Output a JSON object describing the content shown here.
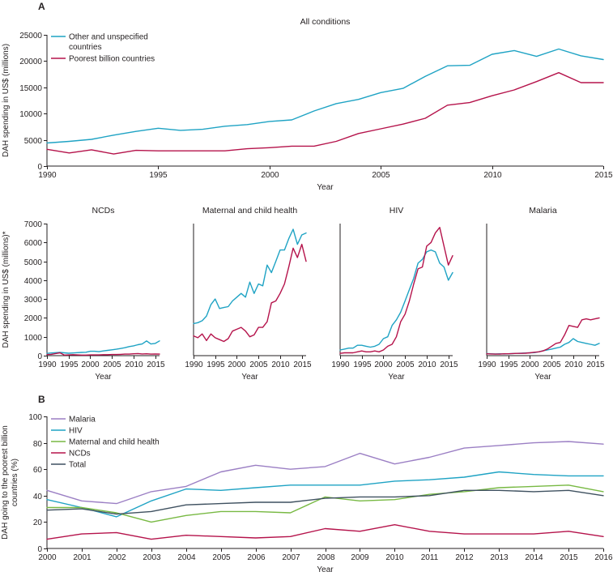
{
  "colors": {
    "other": "#1fa3c4",
    "poorest": "#b5134b",
    "malaria": "#9b7fc4",
    "hiv": "#1fa3c4",
    "mch": "#78b943",
    "ncds": "#b5134b",
    "total": "#3f5160",
    "axis": "#231f20"
  },
  "chart_data": [
    {
      "id": "A",
      "panel_letter": "A",
      "type": "line",
      "title": "All conditions",
      "xlabel": "Year",
      "ylabel": "DAH spending in US$ (millions)",
      "xlim": [
        1990,
        2015
      ],
      "ylim": [
        0,
        25000
      ],
      "xticks": [
        1990,
        1995,
        2000,
        2005,
        2010,
        2015
      ],
      "yticks": [
        0,
        5000,
        10000,
        15000,
        20000,
        25000
      ],
      "legend_position": "top-left",
      "x": [
        1990,
        1991,
        1992,
        1993,
        1994,
        1995,
        1996,
        1997,
        1998,
        1999,
        2000,
        2001,
        2002,
        2003,
        2004,
        2005,
        2006,
        2007,
        2008,
        2009,
        2010,
        2011,
        2012,
        2013,
        2014,
        2015
      ],
      "series": [
        {
          "name": "Other and unspecified countries",
          "color_key": "other",
          "values": [
            4400,
            4700,
            5100,
            5900,
            6600,
            7200,
            6800,
            7000,
            7600,
            7900,
            8500,
            8800,
            10500,
            11900,
            12700,
            14000,
            14800,
            17100,
            19100,
            19200,
            21300,
            22000,
            20900,
            22300,
            21000,
            20300
          ]
        },
        {
          "name": "Poorest billion countries",
          "color_key": "poorest",
          "values": [
            3200,
            2500,
            3100,
            2300,
            3000,
            2900,
            2900,
            2900,
            2900,
            3300,
            3500,
            3800,
            3800,
            4700,
            6200,
            7100,
            8000,
            9100,
            11600,
            12100,
            13400,
            14500,
            16100,
            17800,
            15900,
            15900
          ]
        }
      ]
    },
    {
      "id": "NCDs",
      "type": "line",
      "title": "NCDs",
      "xlabel": "Year",
      "ylabel": "DAH spending in US$ (millions)*",
      "xlim": [
        1990,
        2016
      ],
      "ylim": [
        0,
        7000
      ],
      "xticks": [
        1990,
        1995,
        2000,
        2005,
        2010,
        2015
      ],
      "yticks": [
        0,
        1000,
        2000,
        3000,
        4000,
        5000,
        6000,
        7000
      ],
      "x": [
        1990,
        1991,
        1992,
        1993,
        1994,
        1995,
        1996,
        1997,
        1998,
        1999,
        2000,
        2001,
        2002,
        2003,
        2004,
        2005,
        2006,
        2007,
        2008,
        2009,
        2010,
        2011,
        2012,
        2013,
        2014,
        2015,
        2016
      ],
      "series": [
        {
          "name": "Other and unspecified countries",
          "color_key": "other",
          "values": [
            120,
            140,
            160,
            170,
            150,
            130,
            140,
            160,
            170,
            180,
            230,
            230,
            210,
            250,
            280,
            310,
            340,
            380,
            420,
            480,
            520,
            580,
            620,
            780,
            620,
            650,
            780
          ]
        },
        {
          "name": "Poorest billion countries",
          "color_key": "poorest",
          "values": [
            60,
            70,
            110,
            150,
            30,
            40,
            50,
            40,
            30,
            30,
            40,
            40,
            40,
            50,
            50,
            60,
            60,
            70,
            80,
            80,
            100,
            110,
            90,
            100,
            80,
            90,
            80
          ]
        }
      ]
    },
    {
      "id": "MCH",
      "type": "line",
      "title": "Maternal and child health",
      "xlabel": "Year",
      "ylabel": "",
      "xlim": [
        1990,
        2016
      ],
      "ylim": [
        0,
        7000
      ],
      "xticks": [
        1990,
        1995,
        2000,
        2005,
        2010,
        2015
      ],
      "x": [
        1990,
        1991,
        1992,
        1993,
        1994,
        1995,
        1996,
        1997,
        1998,
        1999,
        2000,
        2001,
        2002,
        2003,
        2004,
        2005,
        2006,
        2007,
        2008,
        2009,
        2010,
        2011,
        2012,
        2013,
        2014,
        2015,
        2016
      ],
      "series": [
        {
          "name": "Other and unspecified countries",
          "color_key": "other",
          "values": [
            1700,
            1750,
            1850,
            2100,
            2700,
            3000,
            2500,
            2550,
            2600,
            2900,
            3100,
            3300,
            3100,
            3900,
            3300,
            3800,
            3700,
            4800,
            4400,
            5000,
            5600,
            5600,
            6200,
            6700,
            5900,
            6400,
            6500
          ]
        },
        {
          "name": "Poorest billion countries",
          "color_key": "poorest",
          "values": [
            1050,
            950,
            1150,
            800,
            1150,
            950,
            850,
            750,
            900,
            1300,
            1400,
            1500,
            1300,
            1000,
            1100,
            1500,
            1500,
            1800,
            2800,
            2900,
            3300,
            3800,
            4700,
            5700,
            5200,
            5900,
            5000
          ]
        }
      ]
    },
    {
      "id": "HIV",
      "type": "line",
      "title": "HIV",
      "xlabel": "Year",
      "ylabel": "",
      "xlim": [
        1990,
        2016
      ],
      "ylim": [
        0,
        7000
      ],
      "xticks": [
        1990,
        1995,
        2000,
        2005,
        2010,
        2015
      ],
      "x": [
        1990,
        1991,
        1992,
        1993,
        1994,
        1995,
        1996,
        1997,
        1998,
        1999,
        2000,
        2001,
        2002,
        2003,
        2004,
        2005,
        2006,
        2007,
        2008,
        2009,
        2010,
        2011,
        2012,
        2013,
        2014,
        2015,
        2016
      ],
      "series": [
        {
          "name": "Other and unspecified countries",
          "color_key": "other",
          "values": [
            300,
            350,
            400,
            400,
            550,
            550,
            500,
            450,
            500,
            600,
            900,
            1000,
            1600,
            1900,
            2300,
            2900,
            3500,
            4100,
            4900,
            5100,
            5500,
            5600,
            5500,
            4900,
            4700,
            4000,
            4400
          ]
        },
        {
          "name": "Poorest billion countries",
          "color_key": "poorest",
          "values": [
            120,
            150,
            150,
            150,
            200,
            250,
            200,
            200,
            250,
            200,
            300,
            500,
            600,
            1000,
            1800,
            2200,
            2900,
            3800,
            4600,
            4700,
            5800,
            6000,
            6500,
            6800,
            5800,
            4800,
            5300
          ]
        }
      ]
    },
    {
      "id": "Malaria",
      "type": "line",
      "title": "Malaria",
      "xlabel": "Year",
      "ylabel": "",
      "xlim": [
        1990,
        2016
      ],
      "ylim": [
        0,
        7000
      ],
      "xticks": [
        1990,
        1995,
        2000,
        2005,
        2010,
        2015
      ],
      "x": [
        1990,
        1991,
        1992,
        1993,
        1994,
        1995,
        1996,
        1997,
        1998,
        1999,
        2000,
        2001,
        2002,
        2003,
        2004,
        2005,
        2006,
        2007,
        2008,
        2009,
        2010,
        2011,
        2012,
        2013,
        2014,
        2015,
        2016
      ],
      "series": [
        {
          "name": "Other and unspecified countries",
          "color_key": "other",
          "values": [
            110,
            100,
            90,
            100,
            90,
            100,
            110,
            120,
            130,
            140,
            150,
            160,
            200,
            260,
            300,
            350,
            400,
            450,
            600,
            700,
            900,
            750,
            700,
            650,
            600,
            550,
            650
          ]
        },
        {
          "name": "Poorest billion countries",
          "color_key": "poorest",
          "values": [
            100,
            90,
            80,
            80,
            100,
            100,
            110,
            120,
            120,
            130,
            150,
            180,
            200,
            250,
            350,
            500,
            650,
            700,
            1100,
            1600,
            1550,
            1500,
            1900,
            1950,
            1900,
            1950,
            2000
          ]
        }
      ]
    },
    {
      "id": "B",
      "panel_letter": "B",
      "type": "line",
      "title": "",
      "xlabel": "Year",
      "ylabel": "DAH going to the poorest billion countries (%)",
      "ylabel_lines": [
        "DAH going to the poorest billion",
        "countries (%)"
      ],
      "xlim": [
        2000,
        2016
      ],
      "ylim": [
        0,
        100
      ],
      "xticks": [
        2000,
        2001,
        2002,
        2003,
        2004,
        2005,
        2006,
        2007,
        2008,
        2009,
        2010,
        2011,
        2012,
        2013,
        2014,
        2015,
        2016
      ],
      "yticks": [
        0,
        20,
        40,
        60,
        80,
        100
      ],
      "legend_position": "top-left",
      "x": [
        2000,
        2001,
        2002,
        2003,
        2004,
        2005,
        2006,
        2007,
        2008,
        2009,
        2010,
        2011,
        2012,
        2013,
        2014,
        2015,
        2016
      ],
      "series": [
        {
          "name": "Malaria",
          "color_key": "malaria",
          "values": [
            44,
            36,
            34,
            43,
            47,
            58,
            63,
            60,
            62,
            72,
            64,
            69,
            76,
            78,
            80,
            81,
            79
          ]
        },
        {
          "name": "HIV",
          "color_key": "hiv",
          "values": [
            37,
            31,
            24,
            36,
            45,
            44,
            46,
            48,
            48,
            48,
            51,
            52,
            54,
            58,
            56,
            55,
            55
          ]
        },
        {
          "name": "Maternal and child health",
          "color_key": "mch",
          "values": [
            31,
            31,
            27,
            20,
            25,
            28,
            28,
            27,
            39,
            36,
            37,
            41,
            43,
            46,
            47,
            48,
            43
          ]
        },
        {
          "name": "NCDs",
          "color_key": "ncds",
          "values": [
            7,
            11,
            12,
            7,
            10,
            9,
            8,
            9,
            15,
            13,
            18,
            13,
            11,
            11,
            11,
            13,
            9
          ]
        },
        {
          "name": "Total",
          "color_key": "total",
          "values": [
            29,
            30,
            26,
            28,
            33,
            34,
            35,
            35,
            38,
            39,
            39,
            40,
            44,
            44,
            43,
            44,
            40
          ]
        }
      ]
    }
  ]
}
